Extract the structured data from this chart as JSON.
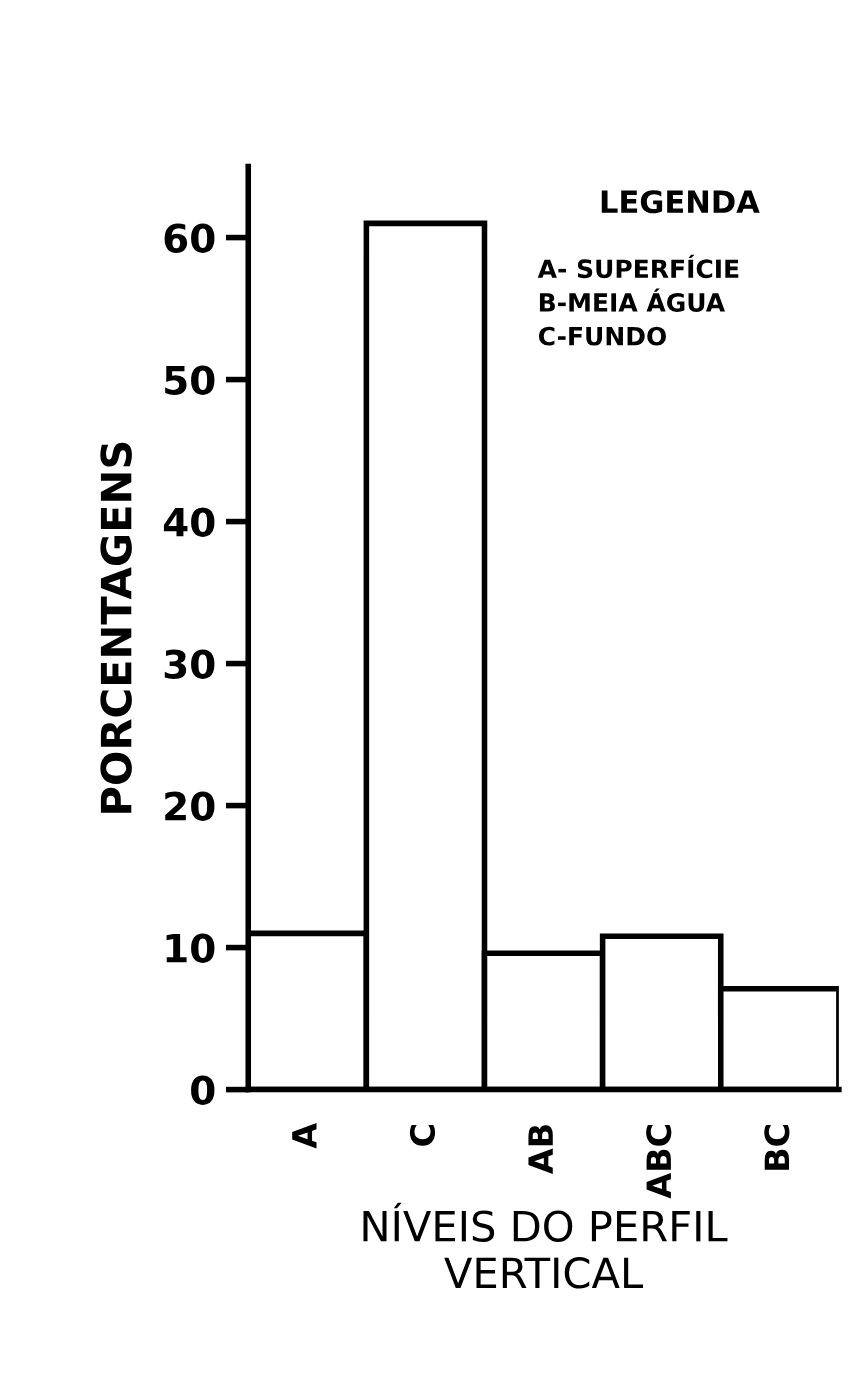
{
  "chart_data": {
    "type": "bar",
    "categories": [
      "A",
      "C",
      "AB",
      "ABC",
      "BC"
    ],
    "values": [
      11.0,
      61.0,
      9.6,
      10.8,
      7.1
    ],
    "color": "#ffffff",
    "xlabel": "NÍVEIS DO PERFIL\nVERTICAL",
    "ylabel": "PORCENTAGENS",
    "ylim": [
      0,
      65
    ],
    "yticks": [
      0,
      10,
      20,
      30,
      40,
      50,
      60
    ],
    "grid": false,
    "annotations": [
      "LEGENDA",
      "A- SUPERFÍCIE\nB-MEIA ÁGUA\nC-FUNDO"
    ]
  }
}
